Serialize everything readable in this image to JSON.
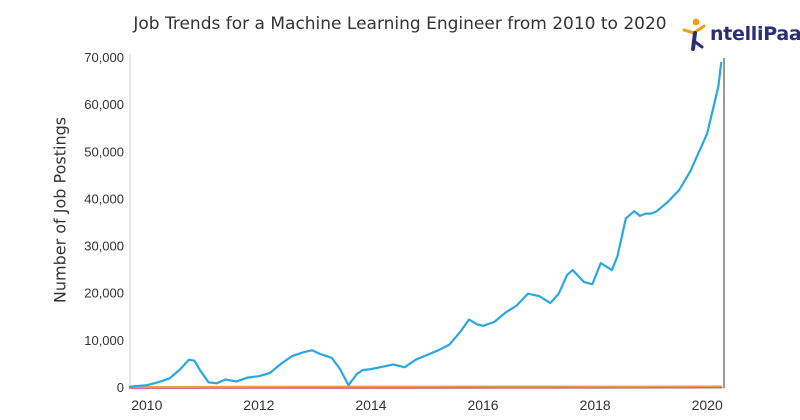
{
  "header": {
    "title": "Job Trends for a Machine Learning Engineer from 2010 to 2020",
    "logo": {
      "prefix": "I",
      "text": "ntelliPaat",
      "colors": [
        "#2b2f76",
        "#f39c12"
      ]
    }
  },
  "chart_data": {
    "type": "line",
    "title": "Job Trends for a Machine Learning Engineer from 2010 to 2020",
    "xlabel": "",
    "ylabel": "Number of Job Postings",
    "xlim": [
      2009.7,
      2020.3
    ],
    "ylim": [
      0,
      70000
    ],
    "x_ticks": [
      2010,
      2012,
      2014,
      2016,
      2018,
      2020
    ],
    "x_tick_labels": [
      "2010",
      "2012",
      "2014",
      "2016",
      "2018",
      "2020"
    ],
    "y_ticks": [
      0,
      10000,
      20000,
      30000,
      40000,
      50000,
      60000,
      70000
    ],
    "y_tick_labels": [
      "0",
      "10,000",
      "20,000",
      "30,000",
      "40,000",
      "50,000",
      "60,000",
      "70,000"
    ],
    "grid": false,
    "series": [
      {
        "color": "#29a8e0",
        "x": [
          2009.7,
          2010.0,
          2010.2,
          2010.4,
          2010.6,
          2010.75,
          2010.85,
          2010.95,
          2011.1,
          2011.25,
          2011.4,
          2011.6,
          2011.8,
          2012.0,
          2012.2,
          2012.4,
          2012.6,
          2012.8,
          2012.95,
          2013.1,
          2013.3,
          2013.45,
          2013.6,
          2013.75,
          2013.85,
          2014.0,
          2014.2,
          2014.4,
          2014.6,
          2014.8,
          2015.0,
          2015.2,
          2015.4,
          2015.6,
          2015.75,
          2015.9,
          2016.0,
          2016.2,
          2016.4,
          2016.6,
          2016.8,
          2017.0,
          2017.2,
          2017.35,
          2017.5,
          2017.6,
          2017.8,
          2017.95,
          2018.1,
          2018.3,
          2018.4,
          2018.55,
          2018.7,
          2018.8,
          2018.9,
          2019.0,
          2019.1,
          2019.3,
          2019.5,
          2019.7,
          2019.85,
          2020.0,
          2020.1,
          2020.2,
          2020.25
        ],
        "y": [
          300,
          600,
          1200,
          2000,
          4000,
          6000,
          5800,
          3800,
          1200,
          1000,
          1800,
          1400,
          2200,
          2500,
          3200,
          5200,
          6800,
          7600,
          8000,
          7200,
          6400,
          4000,
          600,
          3000,
          3800,
          4000,
          4500,
          5000,
          4400,
          6000,
          7000,
          8000,
          9200,
          12000,
          14500,
          13500,
          13200,
          14000,
          16000,
          17500,
          20000,
          19500,
          18000,
          20000,
          24000,
          25000,
          22500,
          22000,
          26500,
          25000,
          28000,
          36000,
          37500,
          36500,
          37000,
          37000,
          37500,
          39500,
          42000,
          46000,
          50000,
          54000,
          59000,
          64000,
          69000
        ]
      },
      {
        "color": "#e6a24a",
        "x": [
          2009.7,
          2012.0,
          2015.0,
          2017.0,
          2018.5,
          2020.25
        ],
        "y": [
          200,
          250,
          300,
          320,
          300,
          350
        ]
      },
      {
        "color": "#d6336c",
        "x": [
          2009.7,
          2012.0,
          2015.0,
          2017.5,
          2018.5,
          2020.25
        ],
        "y": [
          100,
          120,
          150,
          180,
          200,
          220
        ]
      },
      {
        "color": "#b22222",
        "x": [
          2009.7,
          2012.0,
          2015.0,
          2018.0,
          2020.25
        ],
        "y": [
          60,
          80,
          90,
          110,
          150
        ]
      }
    ]
  }
}
